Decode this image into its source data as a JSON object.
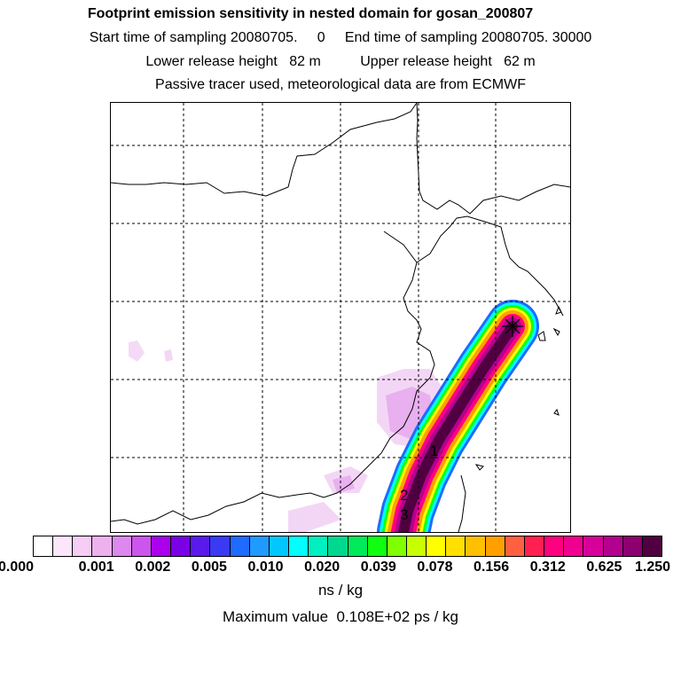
{
  "header": {
    "title": "Footprint emission sensitivity in nested domain for gosan_200807",
    "sampling": "Start time of sampling 20080705.     0     End time of sampling 20080705. 30000",
    "release": "Lower release height   82 m          Upper release height   62 m",
    "tracer": "Passive tracer used, meteorological data are from ECMWF"
  },
  "map": {
    "time_labels": [
      "1",
      "2",
      "3"
    ],
    "station_marker": "station-cross-icon"
  },
  "colorbar": {
    "colors": [
      "#ffffff",
      "#fbe6fb",
      "#f5cdf5",
      "#eeb1ee",
      "#dd88ee",
      "#cc55ee",
      "#aa00ee",
      "#7a00e6",
      "#5a1aee",
      "#3a3af5",
      "#1f6aff",
      "#1f9aff",
      "#00c8ff",
      "#00ffff",
      "#00f0c0",
      "#00d890",
      "#00ea5a",
      "#10ff10",
      "#80ff00",
      "#c8ff00",
      "#ffff00",
      "#ffe000",
      "#ffc000",
      "#ffa000",
      "#ff6040",
      "#ff2050",
      "#ff0080",
      "#f00090",
      "#d8009a",
      "#b40090",
      "#8c0070",
      "#500040"
    ],
    "ticks": [
      "0.000",
      "0.001",
      "0.002",
      "0.005",
      "0.010",
      "0.020",
      "0.039",
      "0.078",
      "0.156",
      "0.312",
      "0.625",
      "1.250"
    ],
    "units": "ns / kg",
    "max_value": "Maximum value  0.108E+02 ps / kg"
  }
}
